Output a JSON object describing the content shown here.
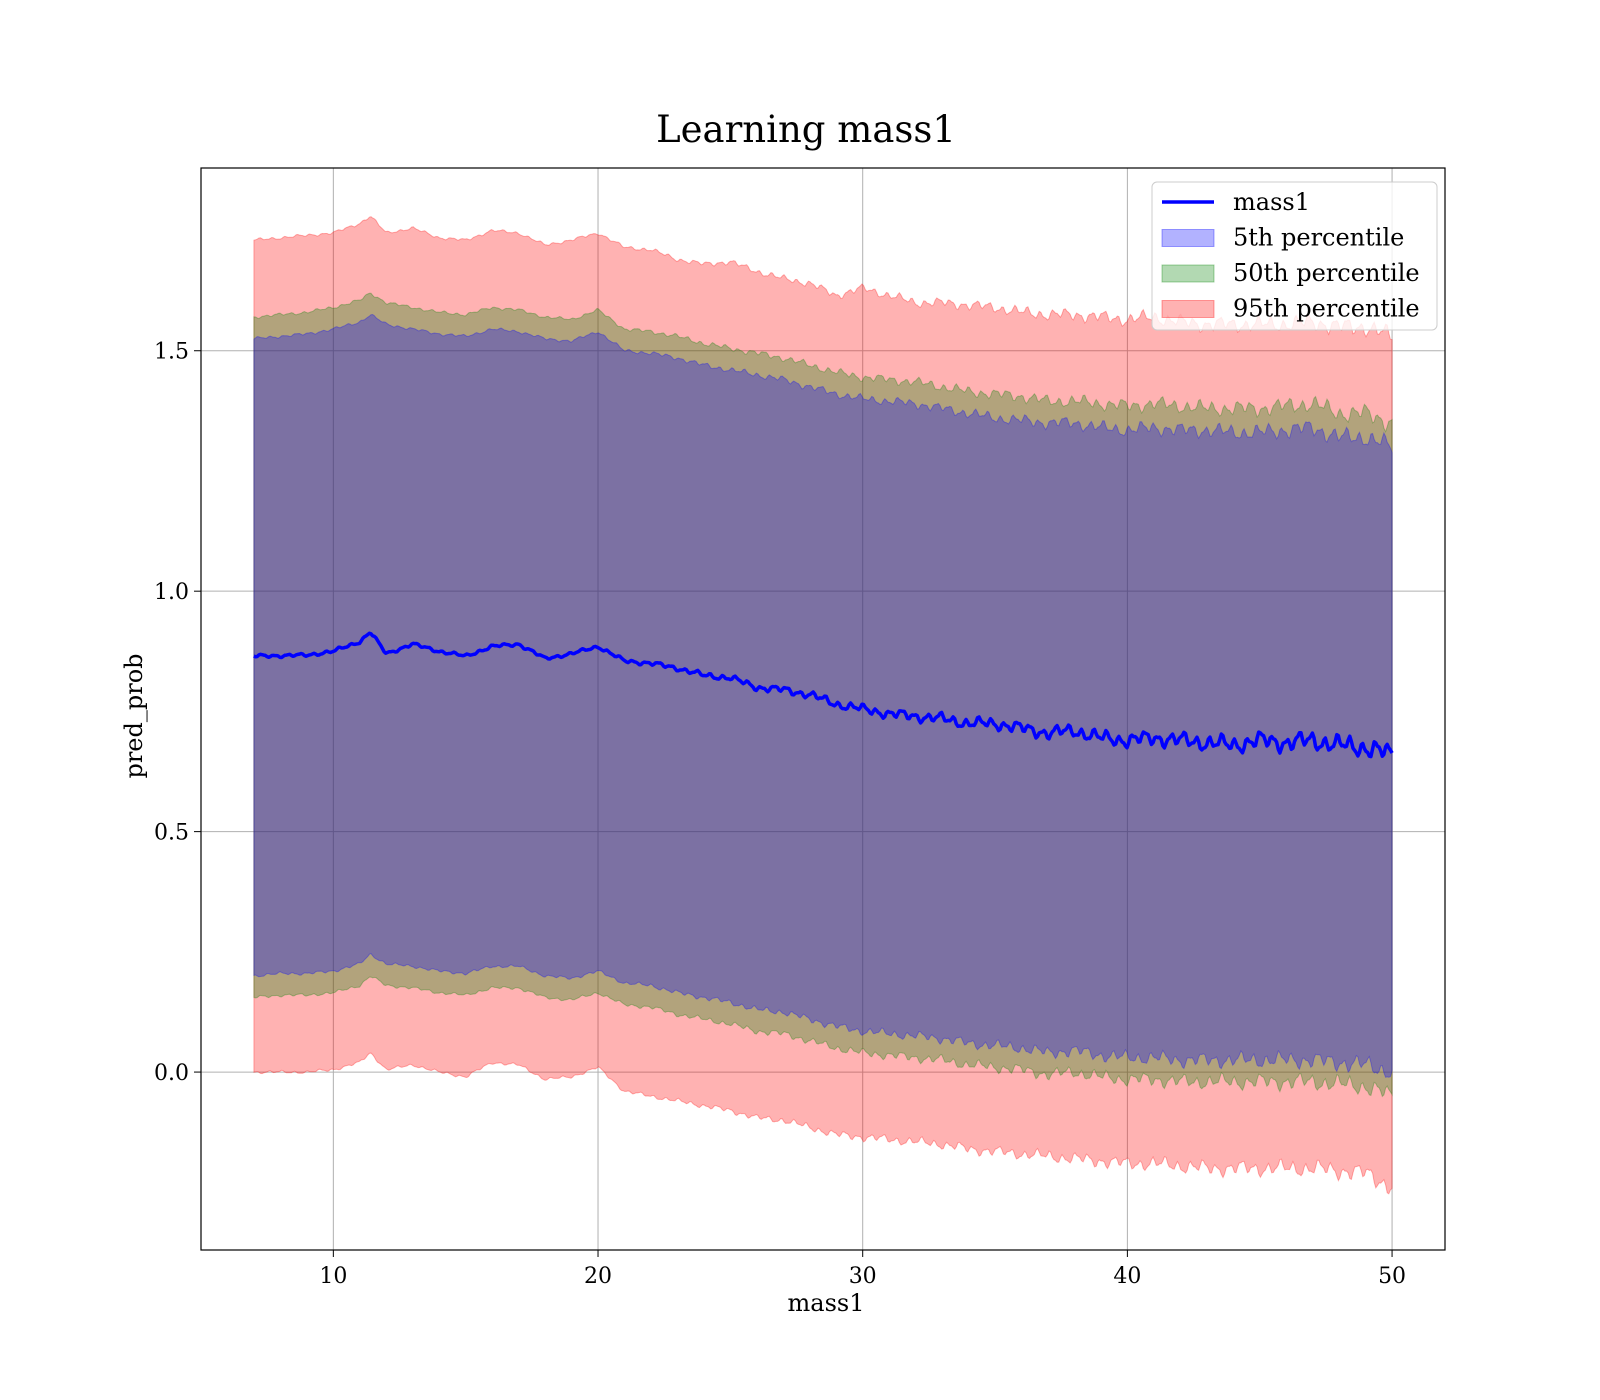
{
  "chart_data": {
    "type": "area",
    "title": "Learning mass1",
    "xlabel": "mass1",
    "ylabel": "pred_prob",
    "xlim": [
      5,
      52
    ],
    "ylim": [
      -0.37,
      1.88
    ],
    "xticks": [
      10,
      20,
      30,
      40,
      50
    ],
    "yticks": [
      0.0,
      0.5,
      1.0,
      1.5
    ],
    "ytick_labels": [
      "0.0",
      "0.5",
      "1.0",
      "1.5"
    ],
    "grid": true,
    "legend_position": "top-right",
    "x": [
      7,
      8,
      9,
      10,
      11,
      11.4,
      12,
      13,
      14,
      15,
      16,
      17,
      18,
      19,
      20,
      21,
      22,
      23,
      24,
      25,
      26,
      27,
      28,
      29,
      30,
      31,
      32,
      33,
      34,
      35,
      36,
      37,
      38,
      39,
      40,
      41,
      42,
      43,
      44,
      45,
      46,
      47,
      48,
      49,
      50
    ],
    "series": [
      {
        "name": "mass1",
        "kind": "line",
        "color": "#0000ff",
        "values": [
          0.865,
          0.866,
          0.867,
          0.875,
          0.895,
          0.915,
          0.87,
          0.89,
          0.875,
          0.865,
          0.885,
          0.89,
          0.86,
          0.87,
          0.885,
          0.855,
          0.85,
          0.84,
          0.825,
          0.82,
          0.8,
          0.795,
          0.785,
          0.765,
          0.755,
          0.745,
          0.74,
          0.735,
          0.725,
          0.725,
          0.715,
          0.705,
          0.71,
          0.695,
          0.69,
          0.695,
          0.69,
          0.685,
          0.68,
          0.69,
          0.685,
          0.69,
          0.68,
          0.675,
          0.66
        ]
      },
      {
        "name": "5th percentile",
        "kind": "band",
        "color": "#0000ff",
        "opacity": 0.3,
        "upper": [
          1.525,
          1.53,
          1.535,
          1.545,
          1.56,
          1.575,
          1.555,
          1.545,
          1.535,
          1.53,
          1.545,
          1.54,
          1.525,
          1.52,
          1.54,
          1.5,
          1.495,
          1.485,
          1.47,
          1.46,
          1.45,
          1.44,
          1.425,
          1.41,
          1.4,
          1.395,
          1.39,
          1.38,
          1.37,
          1.36,
          1.355,
          1.35,
          1.35,
          1.34,
          1.335,
          1.34,
          1.335,
          1.335,
          1.33,
          1.33,
          1.335,
          1.34,
          1.32,
          1.32,
          1.3
        ],
        "lower": [
          0.2,
          0.205,
          0.205,
          0.21,
          0.225,
          0.245,
          0.225,
          0.22,
          0.21,
          0.205,
          0.22,
          0.22,
          0.2,
          0.195,
          0.21,
          0.185,
          0.18,
          0.165,
          0.155,
          0.145,
          0.13,
          0.125,
          0.11,
          0.095,
          0.085,
          0.08,
          0.075,
          0.07,
          0.06,
          0.055,
          0.05,
          0.04,
          0.045,
          0.035,
          0.03,
          0.03,
          0.025,
          0.025,
          0.025,
          0.025,
          0.025,
          0.025,
          0.02,
          0.015,
          0.0
        ]
      },
      {
        "name": "50th percentile",
        "kind": "band",
        "color": "#008000",
        "opacity": 0.3,
        "upper": [
          1.57,
          1.575,
          1.58,
          1.59,
          1.605,
          1.62,
          1.6,
          1.59,
          1.58,
          1.575,
          1.59,
          1.585,
          1.57,
          1.565,
          1.585,
          1.545,
          1.54,
          1.53,
          1.515,
          1.505,
          1.495,
          1.485,
          1.47,
          1.455,
          1.445,
          1.44,
          1.435,
          1.425,
          1.415,
          1.41,
          1.405,
          1.395,
          1.395,
          1.39,
          1.385,
          1.39,
          1.385,
          1.38,
          1.38,
          1.38,
          1.385,
          1.39,
          1.37,
          1.37,
          1.35
        ],
        "lower": [
          0.155,
          0.16,
          0.16,
          0.165,
          0.18,
          0.2,
          0.18,
          0.175,
          0.165,
          0.16,
          0.175,
          0.175,
          0.155,
          0.15,
          0.165,
          0.14,
          0.135,
          0.12,
          0.11,
          0.1,
          0.085,
          0.08,
          0.065,
          0.05,
          0.04,
          0.035,
          0.03,
          0.025,
          0.015,
          0.01,
          0.005,
          -0.005,
          0.0,
          -0.01,
          -0.015,
          -0.015,
          -0.02,
          -0.02,
          -0.02,
          -0.02,
          -0.02,
          -0.02,
          -0.025,
          -0.03,
          -0.05
        ]
      },
      {
        "name": "95th percentile",
        "kind": "band",
        "color": "#ff0000",
        "opacity": 0.3,
        "upper": [
          1.73,
          1.735,
          1.74,
          1.745,
          1.765,
          1.78,
          1.745,
          1.755,
          1.735,
          1.73,
          1.75,
          1.745,
          1.72,
          1.73,
          1.745,
          1.715,
          1.71,
          1.69,
          1.68,
          1.685,
          1.665,
          1.65,
          1.64,
          1.615,
          1.63,
          1.615,
          1.6,
          1.6,
          1.595,
          1.59,
          1.58,
          1.575,
          1.575,
          1.57,
          1.565,
          1.57,
          1.56,
          1.555,
          1.555,
          1.555,
          1.555,
          1.56,
          1.55,
          1.55,
          1.53
        ],
        "lower": [
          0.0,
          0.0,
          0.0,
          0.005,
          0.02,
          0.04,
          0.005,
          0.015,
          0.0,
          -0.01,
          0.02,
          0.015,
          -0.015,
          -0.01,
          0.01,
          -0.04,
          -0.05,
          -0.06,
          -0.07,
          -0.08,
          -0.095,
          -0.1,
          -0.115,
          -0.13,
          -0.135,
          -0.14,
          -0.145,
          -0.15,
          -0.16,
          -0.165,
          -0.17,
          -0.175,
          -0.18,
          -0.185,
          -0.19,
          -0.19,
          -0.195,
          -0.2,
          -0.2,
          -0.2,
          -0.2,
          -0.2,
          -0.205,
          -0.21,
          -0.24
        ]
      }
    ]
  }
}
